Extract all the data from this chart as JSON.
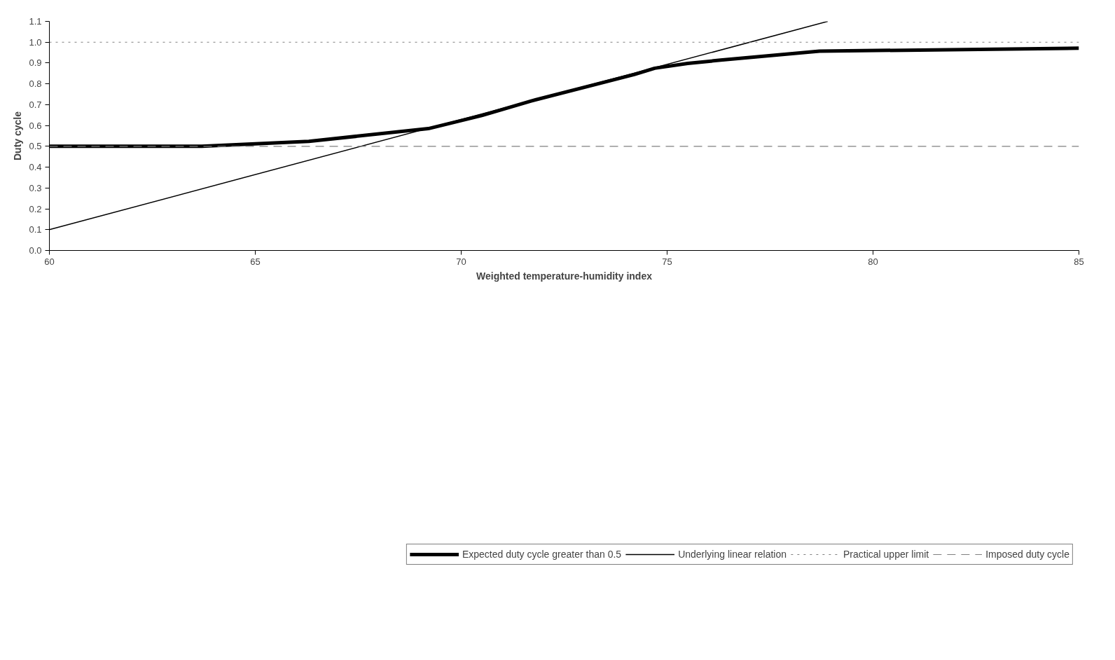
{
  "chart_data": {
    "type": "line",
    "xlabel": "Weighted temperature-humidity index",
    "ylabel": "Duty cycle",
    "xlim": [
      60,
      85
    ],
    "xticks": [
      60,
      65,
      70,
      75,
      80,
      85
    ],
    "ylim": [
      0,
      1.1
    ],
    "yticks": [
      {
        "value": 0,
        "label": "0.0"
      },
      {
        "value": 0.1,
        "label": "0.1"
      },
      {
        "value": 0.2,
        "label": "0.2"
      },
      {
        "value": 0.3,
        "label": "0.3"
      },
      {
        "value": 0.4,
        "label": "0.4"
      },
      {
        "value": 0.5,
        "label": "0.5"
      },
      {
        "value": 0.6,
        "label": "0.6"
      },
      {
        "value": 0.7,
        "label": "0.7"
      },
      {
        "value": 0.8,
        "label": "0.8"
      },
      {
        "value": 0.9,
        "label": "0.9"
      },
      {
        "value": 1.0,
        "label": "1.0"
      },
      {
        "value": 1.1,
        "label": "1.1"
      }
    ],
    "grid": false,
    "legend": "bottom",
    "line_style": "solid",
    "series": [
      {
        "name": "Expected duty cycle greater than 0.5",
        "color": "#000000",
        "x": [
          60,
          63.7,
          66.3,
          69.2,
          70.5,
          71.7,
          74.2,
          74.7,
          75.5,
          76.3,
          78.7,
          85
        ],
        "values": [
          0.5,
          0.5,
          0.524,
          0.585,
          0.648,
          0.718,
          0.845,
          0.875,
          0.898,
          0.914,
          0.957,
          0.971
        ]
      },
      {
        "name": "Underlying linear relation",
        "color": "#000000",
        "x": [
          60,
          78.9
        ],
        "values": [
          0.1,
          1.1
        ]
      },
      {
        "name": "Practical upper limit",
        "color": "#808080",
        "line_style": "dotted",
        "x": [
          60,
          85
        ],
        "values": [
          1.0,
          1.0
        ]
      },
      {
        "name": "Imposed duty cycle",
        "color": "#808080",
        "line_style": "dashed",
        "x": [
          60,
          85
        ],
        "values": [
          0.5,
          0.5
        ]
      }
    ]
  }
}
